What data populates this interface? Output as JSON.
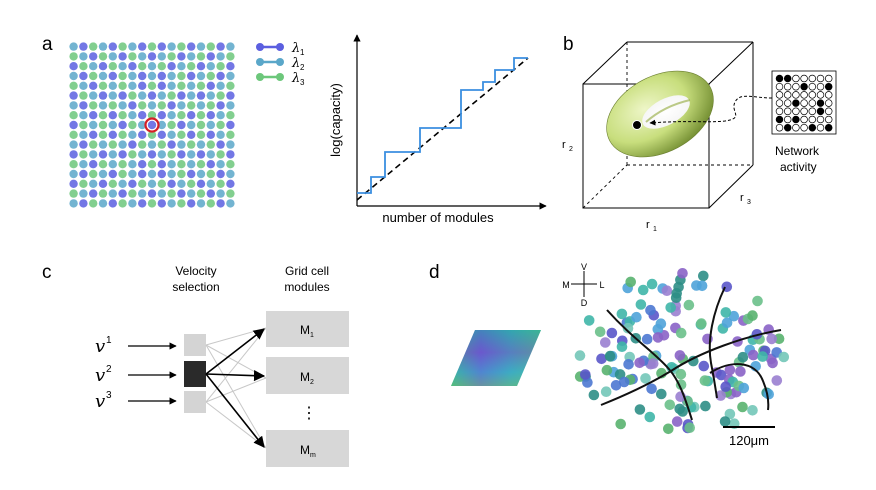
{
  "panel_labels": {
    "a": "a",
    "b": "b",
    "c": "c",
    "d": "d"
  },
  "colors": {
    "lambda1": "#5b5fe0",
    "lambda2": "#5aa7c9",
    "lambda3": "#6cc77b",
    "capacity_line": "#3b8fe0",
    "torus": "#c8de7d"
  },
  "panel_a": {
    "legend": [
      {
        "symbol": "λ",
        "sub": "1",
        "color": "#5b5fe0"
      },
      {
        "symbol": "λ",
        "sub": "2",
        "color": "#5aa7c9"
      },
      {
        "symbol": "λ",
        "sub": "3",
        "color": "#6cc77b"
      }
    ],
    "capacity_plot": {
      "ylabel": "log(capacity)",
      "xlabel": "number of modules"
    }
  },
  "panel_b": {
    "axes": {
      "r1": "r",
      "r1_sub": "1",
      "r2": "r",
      "r2_sub": "2",
      "r3": "r",
      "r3_sub": "3"
    },
    "caption_line1": "Network",
    "caption_line2": "activity",
    "activity_grid": [
      [
        1,
        1,
        0,
        0,
        0,
        0,
        0
      ],
      [
        0,
        0,
        0,
        1,
        0,
        0,
        1
      ],
      [
        0,
        0,
        0,
        0,
        0,
        0,
        0
      ],
      [
        0,
        0,
        1,
        0,
        0,
        1,
        0
      ],
      [
        0,
        0,
        0,
        0,
        0,
        1,
        0
      ],
      [
        1,
        0,
        1,
        0,
        0,
        0,
        0
      ],
      [
        0,
        1,
        0,
        0,
        1,
        0,
        1
      ]
    ]
  },
  "panel_c": {
    "velocity_header_line1": "Velocity",
    "velocity_header_line2": "selection",
    "modules_header_line1": "Grid cell",
    "modules_header_line2": "modules",
    "inputs": [
      {
        "symbol": "v",
        "sup": "1"
      },
      {
        "symbol": "v",
        "sup": "2"
      },
      {
        "symbol": "v",
        "sup": "3"
      }
    ],
    "modules": [
      {
        "label": "M",
        "sub": "1"
      },
      {
        "label": "M",
        "sub": "2"
      },
      {
        "label": "M",
        "sub": "m"
      }
    ],
    "ellipsis": "⋮"
  },
  "panel_d": {
    "compass": {
      "v": "V",
      "d": "D",
      "m": "M",
      "l": "L"
    },
    "scale_bar": "120μm"
  }
}
